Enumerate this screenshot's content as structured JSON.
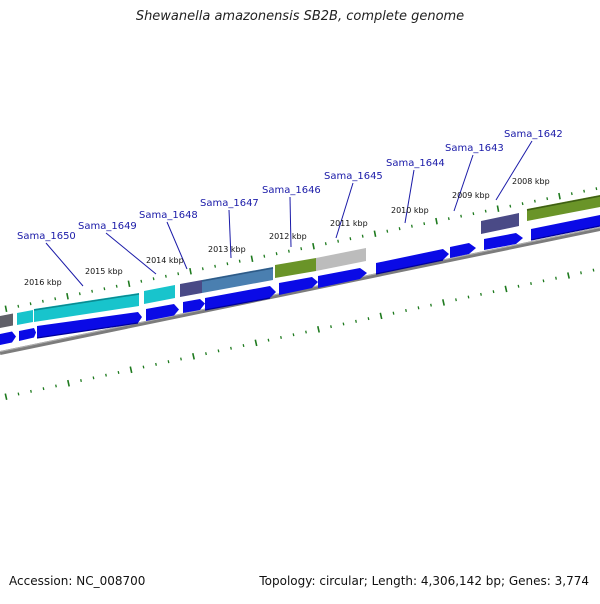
{
  "header": {
    "title": "Shewanella amazonensis SB2B, complete genome"
  },
  "footer": {
    "accession": "Accession: NC_008700",
    "summary": "Topology: circular; Length: 4,306,142 bp; Genes: 3,774"
  },
  "map": {
    "tick_labels": [
      "2016 kbp",
      "2015 kbp",
      "2014 kbp",
      "2013 kbp",
      "2012 kbp",
      "2011 kbp",
      "2010 kbp",
      "2009 kbp",
      "2008 kbp"
    ],
    "gene_labels": [
      "Sama_1650",
      "Sama_1649",
      "Sama_1648",
      "Sama_1647",
      "Sama_1646",
      "Sama_1645",
      "Sama_1644",
      "Sama_1643",
      "Sama_1642"
    ],
    "colors": {
      "cds": "#0a0ae6",
      "cds_dark": "#00009a",
      "backbone": "#8a8a8a",
      "ticks": "#1e7a1e",
      "leader": "#1a1aa8",
      "feature_cyan": "#18c4cc",
      "feature_navy": "#4a4a86",
      "feature_steel": "#4a7fb0",
      "feature_olive": "#6a9428",
      "feature_silver": "#bcbcbc",
      "feature_slate": "#606068"
    }
  }
}
